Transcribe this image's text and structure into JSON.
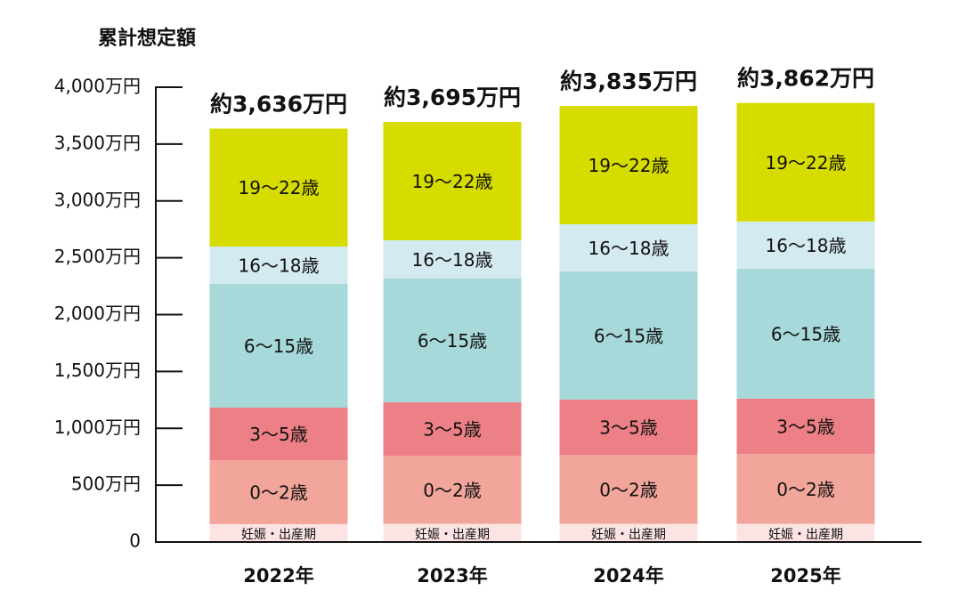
{
  "chart_data": {
    "type": "stacked_bar",
    "title": "累計想定額",
    "categories": [
      "2022年",
      "2023年",
      "2024年",
      "2025年"
    ],
    "series": [
      {
        "name": "妊娠・出産期",
        "color": "#fde4e4",
        "values": [
          157,
          160,
          160,
          160
        ]
      },
      {
        "name": "0〜2歳",
        "color": "#f2a69b",
        "values": [
          563,
          599,
          607,
          615
        ]
      },
      {
        "name": "3〜5歳",
        "color": "#ec8086",
        "values": [
          462,
          470,
          486,
          486
        ]
      },
      {
        "name": "6〜15歳",
        "color": "#a8d9da",
        "values": [
          1088,
          1088,
          1127,
          1143
        ]
      },
      {
        "name": "16〜18歳",
        "color": "#d3eaf0",
        "values": [
          329,
          337,
          415,
          415
        ]
      },
      {
        "name": "19〜22歳",
        "color": "#d7dc00",
        "values": [
          1037,
          1041,
          1040,
          1043
        ]
      }
    ],
    "totals": [
      3636,
      3695,
      3835,
      3862
    ],
    "total_labels": [
      "約3,636万円",
      "約3,695万円",
      "約3,835万円",
      "約3,862万円"
    ],
    "ylim": [
      0,
      4000
    ],
    "yticks": [
      0,
      {
        "value": 500,
        "label": "500万円"
      },
      {
        "value": 1000,
        "label": "1,000万円"
      },
      {
        "value": 1500,
        "label": "1,500万円"
      },
      {
        "value": 2000,
        "label": "2,000万円"
      },
      {
        "value": 2500,
        "label": "2,500万円"
      },
      {
        "value": 3000,
        "label": "3,000万円"
      },
      {
        "value": 3500,
        "label": "3,500万円"
      },
      {
        "value": 4000,
        "label": "4,000万円"
      }
    ]
  }
}
